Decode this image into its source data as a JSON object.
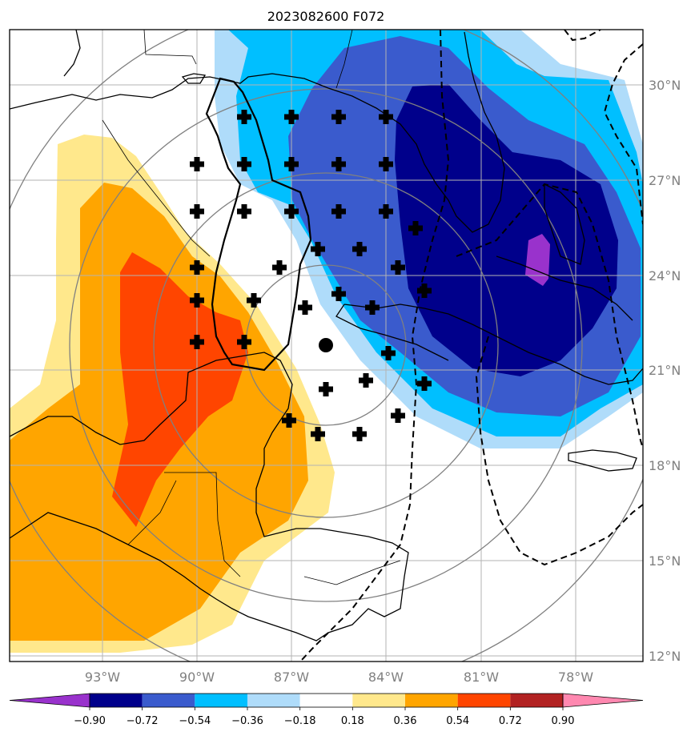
{
  "title": "2023082600 F072",
  "axes": {
    "lon_labels": [
      "93°W",
      "90°W",
      "87°W",
      "84°W",
      "81°W",
      "78°W"
    ],
    "lat_labels": [
      "30°N",
      "27°N",
      "24°N",
      "21°N",
      "18°N",
      "15°N",
      "12°N"
    ],
    "grid": true,
    "lon_range": [
      -95.8,
      -75.6
    ],
    "lat_range": [
      11.8,
      31.8
    ]
  },
  "colorbar": {
    "orientation": "horizontal",
    "extend": "both",
    "tick_labels": [
      "−0.90",
      "−0.72",
      "−0.54",
      "−0.36",
      "−0.18",
      "0.18",
      "0.36",
      "0.54",
      "0.72",
      "0.90"
    ],
    "levels": [
      -0.9,
      -0.72,
      -0.54,
      -0.36,
      -0.18,
      0.18,
      0.36,
      0.54,
      0.72,
      0.9
    ],
    "colors": [
      "#9932cc",
      "#00008b",
      "#3a5bcd",
      "#00bfff",
      "#afdcfa",
      "#ffffff",
      "#ffe88c",
      "#ffa500",
      "#ff4500",
      "#b22222",
      "#ff88b0"
    ]
  },
  "markers": {
    "center_dot": {
      "lon": -85.9,
      "lat": 21.8
    },
    "plus_color": "#000000"
  },
  "colors": {
    "frame": "#000000",
    "grid": "#b3b3b3",
    "range_ring": "#808080",
    "coast": "#000000"
  }
}
